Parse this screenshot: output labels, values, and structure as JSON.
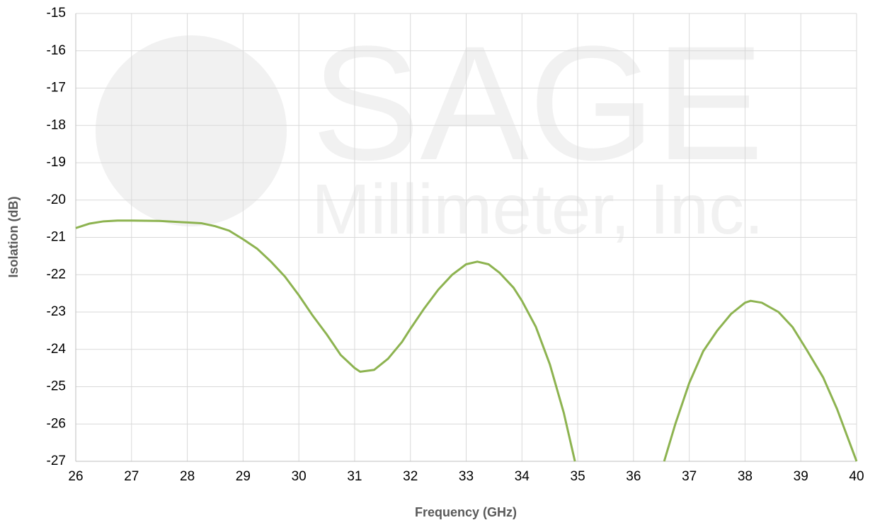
{
  "chart_data": {
    "type": "line",
    "watermark": [
      "SAGE",
      "Millimeter, Inc."
    ],
    "xlabel": "Frequency (GHz)",
    "ylabel": "Isolation (dB)",
    "xlim": [
      26,
      40
    ],
    "ylim": [
      -27,
      -15
    ],
    "xticks": [
      26,
      27,
      28,
      29,
      30,
      31,
      32,
      33,
      34,
      35,
      36,
      37,
      38,
      39,
      40
    ],
    "yticks": [
      -15,
      -16,
      -17,
      -18,
      -19,
      -20,
      -21,
      -22,
      -23,
      -24,
      -25,
      -26,
      -27
    ],
    "grid": true,
    "x": [
      26,
      26.25,
      26.5,
      26.75,
      27,
      27.5,
      28,
      28.25,
      28.5,
      28.75,
      29,
      29.25,
      29.5,
      29.75,
      30,
      30.25,
      30.5,
      30.75,
      31,
      31.1,
      31.35,
      31.6,
      31.85,
      32,
      32.25,
      32.5,
      32.75,
      33,
      33.2,
      33.4,
      33.6,
      33.85,
      34,
      34.25,
      34.5,
      34.75,
      34.95,
      null,
      36.55,
      36.75,
      37,
      37.25,
      37.5,
      37.75,
      38,
      38.1,
      38.3,
      38.6,
      38.85,
      39.1,
      39.4,
      39.65,
      39.85,
      40
    ],
    "series": [
      {
        "color": "#8db350",
        "values": [
          -20.75,
          -20.63,
          -20.57,
          -20.55,
          -20.55,
          -20.56,
          -20.6,
          -20.62,
          -20.7,
          -20.82,
          -21.05,
          -21.3,
          -21.65,
          -22.05,
          -22.55,
          -23.1,
          -23.6,
          -24.15,
          -24.5,
          -24.6,
          -24.55,
          -24.25,
          -23.8,
          -23.45,
          -22.9,
          -22.4,
          -22.0,
          -21.72,
          -21.65,
          -21.72,
          -21.95,
          -22.35,
          -22.7,
          -23.4,
          -24.4,
          -25.7,
          -27,
          null,
          -27,
          -26,
          -24.9,
          -24.05,
          -23.5,
          -23.05,
          -22.75,
          -22.7,
          -22.75,
          -23.0,
          -23.4,
          -24.0,
          -24.75,
          -25.6,
          -26.4,
          -27
        ]
      }
    ]
  }
}
